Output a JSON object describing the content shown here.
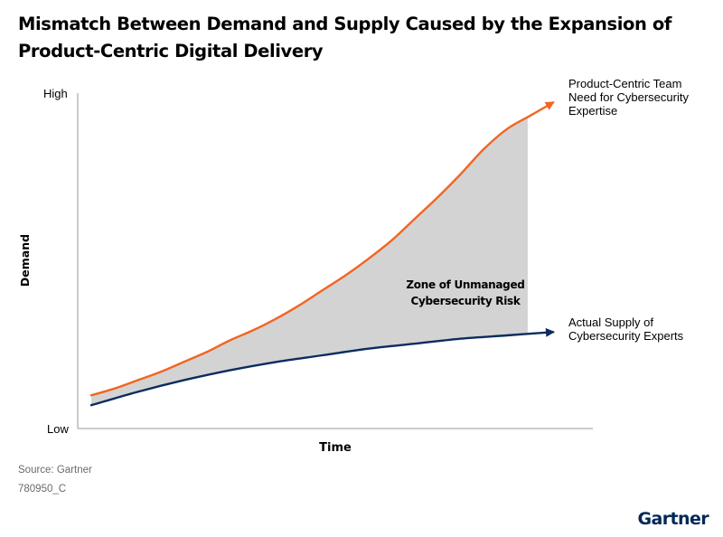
{
  "chart_data": {
    "type": "area",
    "title": "Mismatch Between Demand and Supply Caused by the Expansion of Product-Centric Digital Delivery",
    "xlabel": "Time",
    "ylabel": "Demand",
    "y_tick_labels": [
      "Low",
      "High"
    ],
    "grid": false,
    "legend": "inline labels at line ends",
    "series": [
      {
        "name": "Product-Centric Team Need for Cybersecurity Expertise",
        "color": "#f26522",
        "x": [
          0,
          5,
          10,
          15,
          20,
          25,
          30,
          35,
          40,
          45,
          50,
          55,
          60,
          65,
          70,
          75,
          80,
          85,
          90,
          95,
          100
        ],
        "y": [
          10,
          12,
          14.5,
          17,
          20,
          23,
          26.5,
          29.5,
          33,
          37,
          41.5,
          46,
          51,
          56.5,
          63,
          69.5,
          76.5,
          84,
          90,
          94,
          98
        ]
      },
      {
        "name": "Actual Supply of Cybersecurity Experts",
        "color": "#0b2c5e",
        "x": [
          0,
          10,
          20,
          30,
          40,
          50,
          60,
          70,
          80,
          90,
          100
        ],
        "y": [
          7,
          11,
          14.5,
          17.5,
          20,
          22,
          24,
          25.5,
          27,
          28,
          29
        ]
      }
    ],
    "annotations": [
      {
        "text": "Zone of Unmanaged Cybersecurity Risk",
        "fill_color": "#d3d3d3"
      }
    ]
  },
  "footer": {
    "source": "Source: Gartner",
    "code": "780950_C",
    "brand": "Gartner"
  }
}
